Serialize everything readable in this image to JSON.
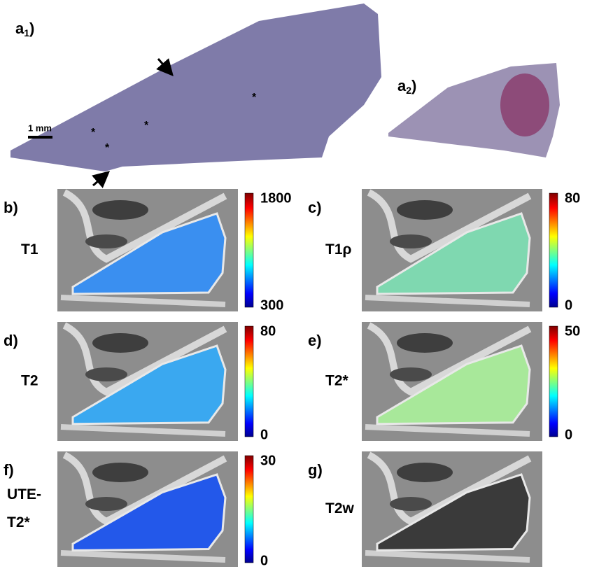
{
  "figure_a": {
    "a1": {
      "label": [
        "a",
        "1",
        ")"
      ],
      "scale_bar": "1 mm",
      "markers": [
        "*",
        "*",
        "*",
        "*"
      ]
    },
    "a2": {
      "label": [
        "a",
        "2",
        ")"
      ]
    }
  },
  "panels": [
    {
      "label": "b)",
      "map": [
        "T1"
      ],
      "colorbar": {
        "max": 1800,
        "min": 300
      }
    },
    {
      "label": "c)",
      "map": [
        "T1ρ"
      ],
      "colorbar": {
        "max": 80,
        "min": 0
      }
    },
    {
      "label": "d)",
      "map": [
        "T2"
      ],
      "colorbar": {
        "max": 80,
        "min": 0
      }
    },
    {
      "label": "e)",
      "map": [
        "T2*"
      ],
      "colorbar": {
        "max": 50,
        "min": 0
      }
    },
    {
      "label": "f)",
      "map": [
        "UTE-",
        "T2*"
      ],
      "colorbar": {
        "max": 30,
        "min": 0
      }
    },
    {
      "label": "g)",
      "map": [
        "T2w"
      ]
    }
  ]
}
